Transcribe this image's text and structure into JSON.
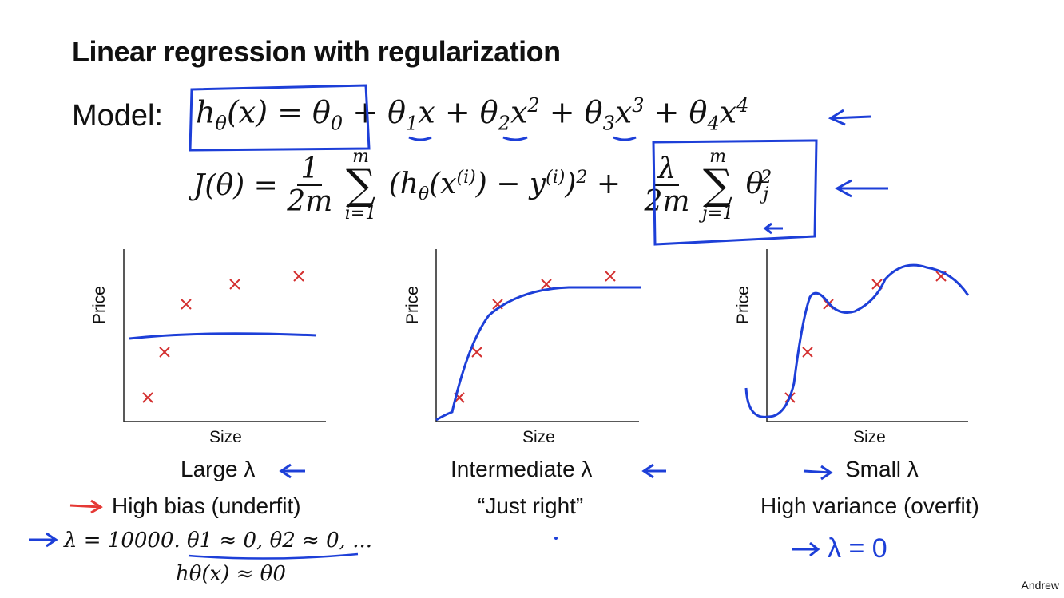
{
  "title": "Linear regression with regularization",
  "model": {
    "label": "Model:",
    "hypothesis": "hθ(x) = θ0 + θ1x + θ2x² + θ3x³ + θ4x⁴",
    "cost": "J(θ) = 1/(2m) Σ_{i=1}^{m} (hθ(x^(i)) − y^(i))² + λ/(2m) Σ_{j=1}^{m} θj²",
    "sum_upper": "m",
    "sum_lower_i": "i=1",
    "sum_lower_j": "j=1"
  },
  "plots": [
    {
      "ylabel": "Price",
      "xlabel": "Size",
      "caption": "Large λ",
      "subcaption": "High bias (underfit)",
      "note_1": "λ = 10000. θ1 ≈ 0, θ2 ≈ 0, ...",
      "note_2": "hθ(x) ≈ θ0"
    },
    {
      "ylabel": "Price",
      "xlabel": "Size",
      "caption": "Intermediate λ",
      "subcaption": "“Just right”"
    },
    {
      "ylabel": "Price",
      "xlabel": "Size",
      "caption": "Small λ",
      "subcaption": "High variance (overfit)",
      "note_1": "λ = 0"
    }
  ],
  "author": "Andrew",
  "colors": {
    "marker": "#d32f2f",
    "ink": "#1d3fd8",
    "bias_arrow": "#e53935"
  }
}
